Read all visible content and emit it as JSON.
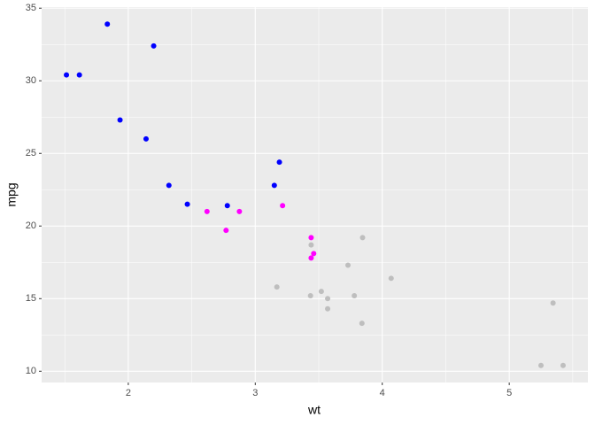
{
  "chart_data": {
    "type": "scatter",
    "x_label": "wt",
    "y_label": "mpg",
    "xlim": [
      1.3175,
      5.6195
    ],
    "ylim": [
      9.225,
      35.075
    ],
    "xticks": [
      2,
      3,
      4,
      5
    ],
    "yticks": [
      10,
      15,
      20,
      25,
      30,
      35
    ],
    "minor_xticks": [
      1.5,
      2.5,
      3.5,
      4.5,
      5.5
    ],
    "minor_yticks": [
      12.5,
      17.5,
      22.5,
      27.5,
      32.5
    ],
    "grid": true,
    "series": [
      {
        "color": "#0000ff",
        "x": [
          2.32,
          3.19,
          3.15,
          2.2,
          1.615,
          1.835,
          2.465,
          1.935,
          2.14,
          1.513,
          2.78
        ],
        "values": [
          22.8,
          24.4,
          22.8,
          32.4,
          30.4,
          33.9,
          21.5,
          27.3,
          26.0,
          30.4,
          21.4
        ]
      },
      {
        "color": "#ff00ff",
        "x": [
          2.62,
          2.875,
          3.215,
          3.46,
          3.44,
          3.44,
          2.77
        ],
        "values": [
          21.0,
          21.0,
          21.4,
          18.1,
          19.2,
          17.8,
          19.7
        ]
      },
      {
        "color": "#bebebe",
        "x": [
          3.44,
          3.57,
          4.07,
          3.73,
          3.78,
          5.25,
          5.424,
          5.345,
          3.52,
          3.435,
          3.84,
          3.845,
          3.17,
          3.57
        ],
        "values": [
          18.7,
          14.3,
          16.4,
          17.3,
          15.2,
          10.4,
          10.4,
          14.7,
          15.5,
          15.2,
          13.3,
          19.2,
          15.8,
          15.0
        ]
      }
    ]
  }
}
